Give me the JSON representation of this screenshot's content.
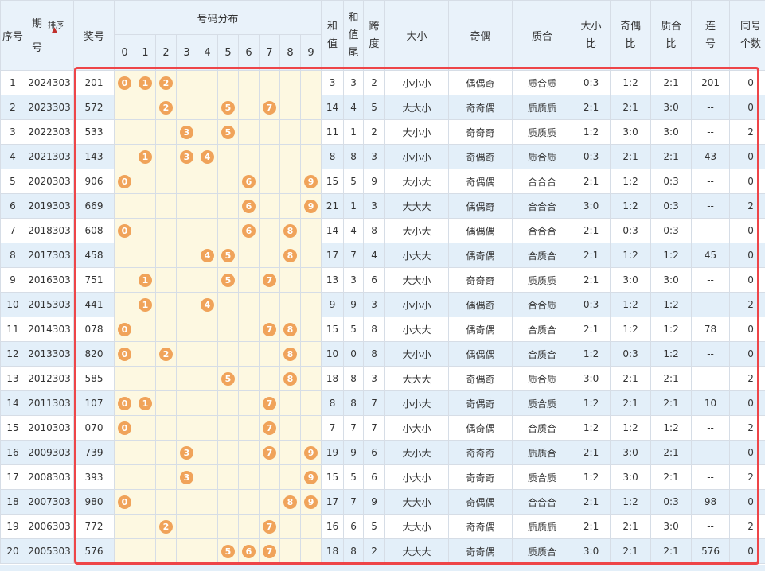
{
  "headers": {
    "seq": "序号",
    "period_line1": "期",
    "period_line2": "号",
    "sort": "排序",
    "prize": "奖号",
    "distribution": "号码分布",
    "digits": [
      "0",
      "1",
      "2",
      "3",
      "4",
      "5",
      "6",
      "7",
      "8",
      "9"
    ],
    "sum_line1": "和",
    "sum_line2": "值",
    "sumtail_line1": "和",
    "sumtail_line2": "值",
    "sumtail_line3": "尾",
    "span_line1": "跨",
    "span_line2": "度",
    "size": "大小",
    "parity": "奇偶",
    "prime": "质合",
    "size_ratio_line1": "大小",
    "size_ratio_line2": "比",
    "parity_ratio_line1": "奇偶",
    "parity_ratio_line2": "比",
    "prime_ratio_line1": "质合",
    "prime_ratio_line2": "比",
    "consec_line1": "连",
    "consec_line2": "号",
    "same_line1": "同号",
    "same_line2": "个数"
  },
  "accent_color": "#ee4548",
  "ball_color": "#f0a35a",
  "rows": [
    {
      "seq": "1",
      "period": "2024303",
      "prize": "201",
      "sum": "3",
      "tail": "3",
      "span": "2",
      "size": "小小小",
      "parity": "偶偶奇",
      "prime": "质合质",
      "sizeRatio": "0:3",
      "parityRatio": "1:2",
      "primeRatio": "2:1",
      "consec": "201",
      "same": "0"
    },
    {
      "seq": "2",
      "period": "2023303",
      "prize": "572",
      "sum": "14",
      "tail": "4",
      "span": "5",
      "size": "大大小",
      "parity": "奇奇偶",
      "prime": "质质质",
      "sizeRatio": "2:1",
      "parityRatio": "2:1",
      "primeRatio": "3:0",
      "consec": "--",
      "same": "0"
    },
    {
      "seq": "3",
      "period": "2022303",
      "prize": "533",
      "sum": "11",
      "tail": "1",
      "span": "2",
      "size": "大小小",
      "parity": "奇奇奇",
      "prime": "质质质",
      "sizeRatio": "1:2",
      "parityRatio": "3:0",
      "primeRatio": "3:0",
      "consec": "--",
      "same": "2"
    },
    {
      "seq": "4",
      "period": "2021303",
      "prize": "143",
      "sum": "8",
      "tail": "8",
      "span": "3",
      "size": "小小小",
      "parity": "奇偶奇",
      "prime": "质合质",
      "sizeRatio": "0:3",
      "parityRatio": "2:1",
      "primeRatio": "2:1",
      "consec": "43",
      "same": "0"
    },
    {
      "seq": "5",
      "period": "2020303",
      "prize": "906",
      "sum": "15",
      "tail": "5",
      "span": "9",
      "size": "大小大",
      "parity": "奇偶偶",
      "prime": "合合合",
      "sizeRatio": "2:1",
      "parityRatio": "1:2",
      "primeRatio": "0:3",
      "consec": "--",
      "same": "0"
    },
    {
      "seq": "6",
      "period": "2019303",
      "prize": "669",
      "sum": "21",
      "tail": "1",
      "span": "3",
      "size": "大大大",
      "parity": "偶偶奇",
      "prime": "合合合",
      "sizeRatio": "3:0",
      "parityRatio": "1:2",
      "primeRatio": "0:3",
      "consec": "--",
      "same": "2"
    },
    {
      "seq": "7",
      "period": "2018303",
      "prize": "608",
      "sum": "14",
      "tail": "4",
      "span": "8",
      "size": "大小大",
      "parity": "偶偶偶",
      "prime": "合合合",
      "sizeRatio": "2:1",
      "parityRatio": "0:3",
      "primeRatio": "0:3",
      "consec": "--",
      "same": "0"
    },
    {
      "seq": "8",
      "period": "2017303",
      "prize": "458",
      "sum": "17",
      "tail": "7",
      "span": "4",
      "size": "小大大",
      "parity": "偶奇偶",
      "prime": "合质合",
      "sizeRatio": "2:1",
      "parityRatio": "1:2",
      "primeRatio": "1:2",
      "consec": "45",
      "same": "0"
    },
    {
      "seq": "9",
      "period": "2016303",
      "prize": "751",
      "sum": "13",
      "tail": "3",
      "span": "6",
      "size": "大大小",
      "parity": "奇奇奇",
      "prime": "质质质",
      "sizeRatio": "2:1",
      "parityRatio": "3:0",
      "primeRatio": "3:0",
      "consec": "--",
      "same": "0"
    },
    {
      "seq": "10",
      "period": "2015303",
      "prize": "441",
      "sum": "9",
      "tail": "9",
      "span": "3",
      "size": "小小小",
      "parity": "偶偶奇",
      "prime": "合合质",
      "sizeRatio": "0:3",
      "parityRatio": "1:2",
      "primeRatio": "1:2",
      "consec": "--",
      "same": "2"
    },
    {
      "seq": "11",
      "period": "2014303",
      "prize": "078",
      "sum": "15",
      "tail": "5",
      "span": "8",
      "size": "小大大",
      "parity": "偶奇偶",
      "prime": "合质合",
      "sizeRatio": "2:1",
      "parityRatio": "1:2",
      "primeRatio": "1:2",
      "consec": "78",
      "same": "0"
    },
    {
      "seq": "12",
      "period": "2013303",
      "prize": "820",
      "sum": "10",
      "tail": "0",
      "span": "8",
      "size": "大小小",
      "parity": "偶偶偶",
      "prime": "合质合",
      "sizeRatio": "1:2",
      "parityRatio": "0:3",
      "primeRatio": "1:2",
      "consec": "--",
      "same": "0"
    },
    {
      "seq": "13",
      "period": "2012303",
      "prize": "585",
      "sum": "18",
      "tail": "8",
      "span": "3",
      "size": "大大大",
      "parity": "奇偶奇",
      "prime": "质合质",
      "sizeRatio": "3:0",
      "parityRatio": "2:1",
      "primeRatio": "2:1",
      "consec": "--",
      "same": "2"
    },
    {
      "seq": "14",
      "period": "2011303",
      "prize": "107",
      "sum": "8",
      "tail": "8",
      "span": "7",
      "size": "小小大",
      "parity": "奇偶奇",
      "prime": "质合质",
      "sizeRatio": "1:2",
      "parityRatio": "2:1",
      "primeRatio": "2:1",
      "consec": "10",
      "same": "0"
    },
    {
      "seq": "15",
      "period": "2010303",
      "prize": "070",
      "sum": "7",
      "tail": "7",
      "span": "7",
      "size": "小大小",
      "parity": "偶奇偶",
      "prime": "合质合",
      "sizeRatio": "1:2",
      "parityRatio": "1:2",
      "primeRatio": "1:2",
      "consec": "--",
      "same": "2"
    },
    {
      "seq": "16",
      "period": "2009303",
      "prize": "739",
      "sum": "19",
      "tail": "9",
      "span": "6",
      "size": "大小大",
      "parity": "奇奇奇",
      "prime": "质质合",
      "sizeRatio": "2:1",
      "parityRatio": "3:0",
      "primeRatio": "2:1",
      "consec": "--",
      "same": "0"
    },
    {
      "seq": "17",
      "period": "2008303",
      "prize": "393",
      "sum": "15",
      "tail": "5",
      "span": "6",
      "size": "小大小",
      "parity": "奇奇奇",
      "prime": "质合质",
      "sizeRatio": "1:2",
      "parityRatio": "3:0",
      "primeRatio": "2:1",
      "consec": "--",
      "same": "2"
    },
    {
      "seq": "18",
      "period": "2007303",
      "prize": "980",
      "sum": "17",
      "tail": "7",
      "span": "9",
      "size": "大大小",
      "parity": "奇偶偶",
      "prime": "合合合",
      "sizeRatio": "2:1",
      "parityRatio": "1:2",
      "primeRatio": "0:3",
      "consec": "98",
      "same": "0"
    },
    {
      "seq": "19",
      "period": "2006303",
      "prize": "772",
      "sum": "16",
      "tail": "6",
      "span": "5",
      "size": "大大小",
      "parity": "奇奇偶",
      "prime": "质质质",
      "sizeRatio": "2:1",
      "parityRatio": "2:1",
      "primeRatio": "3:0",
      "consec": "--",
      "same": "2"
    },
    {
      "seq": "20",
      "period": "2005303",
      "prize": "576",
      "sum": "18",
      "tail": "8",
      "span": "2",
      "size": "大大大",
      "parity": "奇奇偶",
      "prime": "质质合",
      "sizeRatio": "3:0",
      "parityRatio": "2:1",
      "primeRatio": "2:1",
      "consec": "576",
      "same": "0"
    }
  ]
}
